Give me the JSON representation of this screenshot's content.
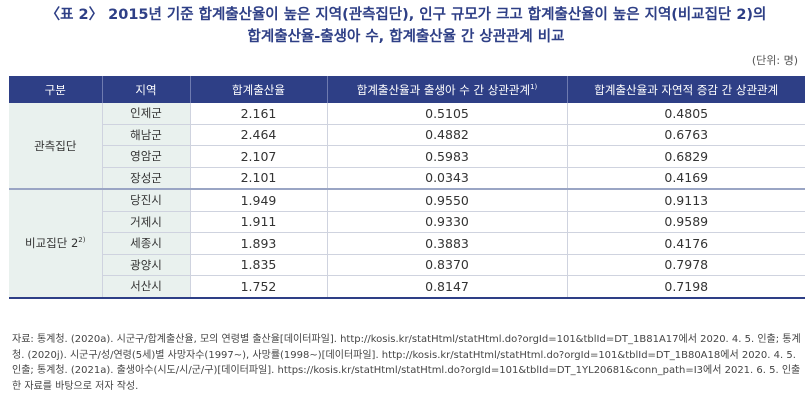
{
  "title_line1": "〈표 2〉 2015년 기준 합계출산율이 높은 지역(관측집단), 인구 규모가 크고 합계출산율이 높은 지역(비교집단 2)의",
  "title_line2": "합계출산율-출생아 수, 합계출산율 간 상관관계 비교",
  "unit": "(단위: 명)",
  "headers": {
    "group": "구분",
    "region": "지역",
    "tfr": "합계출산율",
    "corr_births": "합계출산율과 출생아 수 간 상관관계",
    "corr_births_sup": "1)",
    "corr_natural": "합계출산율과 자연적 증감 간 상관관계"
  },
  "groups": [
    {
      "name": "관측집단",
      "sup": "",
      "rows": [
        {
          "region": "인제군",
          "tfr": "2.161",
          "corr_births": "0.5105",
          "corr_natural": "0.4805"
        },
        {
          "region": "해남군",
          "tfr": "2.464",
          "corr_births": "0.4882",
          "corr_natural": "0.6763"
        },
        {
          "region": "영암군",
          "tfr": "2.107",
          "corr_births": "0.5983",
          "corr_natural": "0.6829"
        },
        {
          "region": "장성군",
          "tfr": "2.101",
          "corr_births": "0.0343",
          "corr_natural": "0.4169"
        }
      ]
    },
    {
      "name": "비교집단 2",
      "sup": "2)",
      "rows": [
        {
          "region": "당진시",
          "tfr": "1.949",
          "corr_births": "0.9550",
          "corr_natural": "0.9113"
        },
        {
          "region": "거제시",
          "tfr": "1.911",
          "corr_births": "0.9330",
          "corr_natural": "0.9589"
        },
        {
          "region": "세종시",
          "tfr": "1.893",
          "corr_births": "0.3883",
          "corr_natural": "0.4176"
        },
        {
          "region": "광양시",
          "tfr": "1.835",
          "corr_births": "0.8370",
          "corr_natural": "0.7978"
        },
        {
          "region": "서산시",
          "tfr": "1.752",
          "corr_births": "0.8147",
          "corr_natural": "0.7198"
        }
      ]
    }
  ],
  "source": "자료: 통계청. (2020a). 시군구/합계출산율, 모의 연령별 출산율[데이터파일]. http://kosis.kr/statHtml/statHtml.do?orgId=101&tblId=DT_1B81A17에서 2020. 4. 5. 인출; 통계청. (2020j). 시군구/성/연령(5세)별 사망자수(1997~), 사망률(1998~)[데이터파일]. http://kosis.kr/statHtml/statHtml.do?orgId=101&tblId=DT_1B80A18에서 2020. 4. 5. 인출; 통계청. (2021a). 출생아수(시도/시/군/구)[데이터파일]. https://kosis.kr/statHtml/statHtml.do?orgId=101&tblId=DT_1YL20681&conn_path=I3에서 2021. 6. 5. 인출한 자료를 바탕으로 저자 작성."
}
